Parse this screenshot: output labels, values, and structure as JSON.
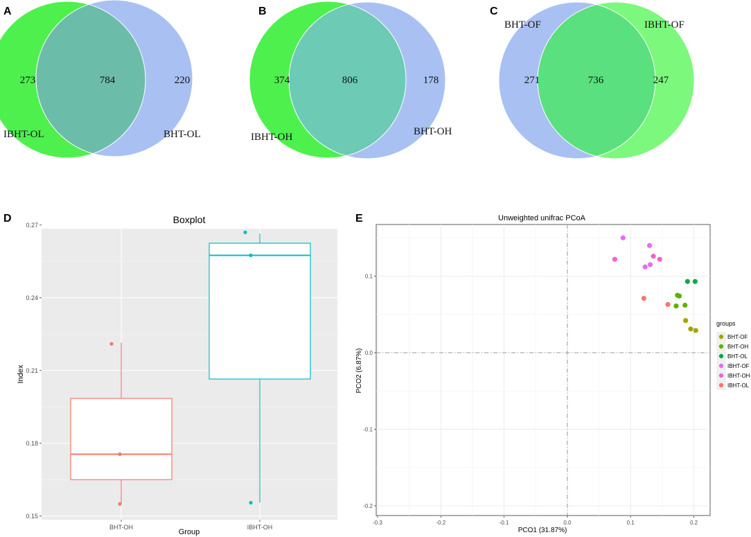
{
  "panels": {
    "a": "A",
    "b": "B",
    "c": "C",
    "d": "D",
    "e": "E"
  },
  "colors": {
    "green": "#4ef04e",
    "blue": "#a9c0f2",
    "overlap_teal": "#6cbcaa",
    "overlap_green": "#5ae07e",
    "box_red": "#f8766d",
    "box_teal": "#00bfc4",
    "pcoa_bht_of": "#a3a500",
    "pcoa_bht_oh": "#5bb300",
    "pcoa_bht_ol": "#00a94f",
    "pcoa_ibht_of": "#e76bf3",
    "pcoa_ibht_oh": "#f064d2",
    "pcoa_ibht_ol": "#f8766d"
  },
  "chart_data": [
    {
      "type": "venn",
      "panel": "A",
      "sets": [
        "IBHT-OL",
        "BHT-OL"
      ],
      "left_only": "273",
      "overlap": "784",
      "right_only": "220"
    },
    {
      "type": "venn",
      "panel": "B",
      "sets": [
        "IBHT-OH",
        "BHT-OH"
      ],
      "left_only": "374",
      "overlap": "806",
      "right_only": "178"
    },
    {
      "type": "venn",
      "panel": "C",
      "sets": [
        "BHT-OF",
        "IBHT-OF"
      ],
      "left_only": "271",
      "overlap": "736",
      "right_only": "247"
    },
    {
      "type": "boxplot",
      "panel": "D",
      "title": "Boxplot",
      "xlabel": "Group",
      "ylabel": "Index",
      "ylim": [
        0.15,
        0.27
      ],
      "yticks": [
        "0.15",
        "0.18",
        "0.21",
        "0.24",
        "0.27"
      ],
      "categories": [
        "BHT-OH",
        "IBHT-OH"
      ],
      "boxes": [
        {
          "name": "BHT-OH",
          "min": 0.155,
          "q1": 0.165,
          "median": 0.1755,
          "q3": 0.1985,
          "max": 0.2215,
          "points": [
            0.221,
            0.1755,
            0.155
          ]
        },
        {
          "name": "IBHT-OH",
          "min": 0.1555,
          "q1": 0.2065,
          "median": 0.2575,
          "q3": 0.2625,
          "max": 0.2665,
          "points": [
            0.267,
            0.2575,
            0.1555
          ]
        }
      ]
    },
    {
      "type": "scatter",
      "panel": "E",
      "title": "Unweighted unifrac PCoA",
      "xlabel": "PCO1 (31.87%)",
      "ylabel": "PCO2 (6.87%)",
      "xlim": [
        -0.3,
        0.22
      ],
      "ylim": [
        -0.22,
        0.17
      ],
      "xticks": [
        "-0.3",
        "-0.2",
        "-0.1",
        "0.0",
        "0.1",
        "0.2"
      ],
      "yticks": [
        "-0.2",
        "-0.1",
        "0.0",
        "0.1"
      ],
      "legend_title": "groups",
      "legend_position": "right",
      "series": [
        {
          "name": "BHT-OF",
          "points": [
            [
              0.187,
              0.042
            ],
            [
              0.195,
              0.031
            ],
            [
              0.203,
              0.029
            ]
          ]
        },
        {
          "name": "BHT-OH",
          "points": [
            [
              0.172,
              0.061
            ],
            [
              0.186,
              0.062
            ],
            [
              0.174,
              0.075
            ],
            [
              0.177,
              0.074
            ]
          ]
        },
        {
          "name": "BHT-OL",
          "points": [
            [
              0.19,
              0.093
            ],
            [
              0.202,
              0.093
            ]
          ]
        },
        {
          "name": "IBHT-OF",
          "points": [
            [
              0.13,
              0.14
            ],
            [
              0.123,
              0.112
            ],
            [
              0.131,
              0.115
            ],
            [
              0.088,
              0.15
            ]
          ]
        },
        {
          "name": "IBHT-OH",
          "points": [
            [
              0.075,
              0.122
            ],
            [
              0.136,
              0.126
            ],
            [
              0.146,
              0.122
            ]
          ]
        },
        {
          "name": "IBHT-OL",
          "points": [
            [
              0.121,
              0.071
            ],
            [
              0.159,
              0.063
            ]
          ]
        }
      ]
    }
  ]
}
